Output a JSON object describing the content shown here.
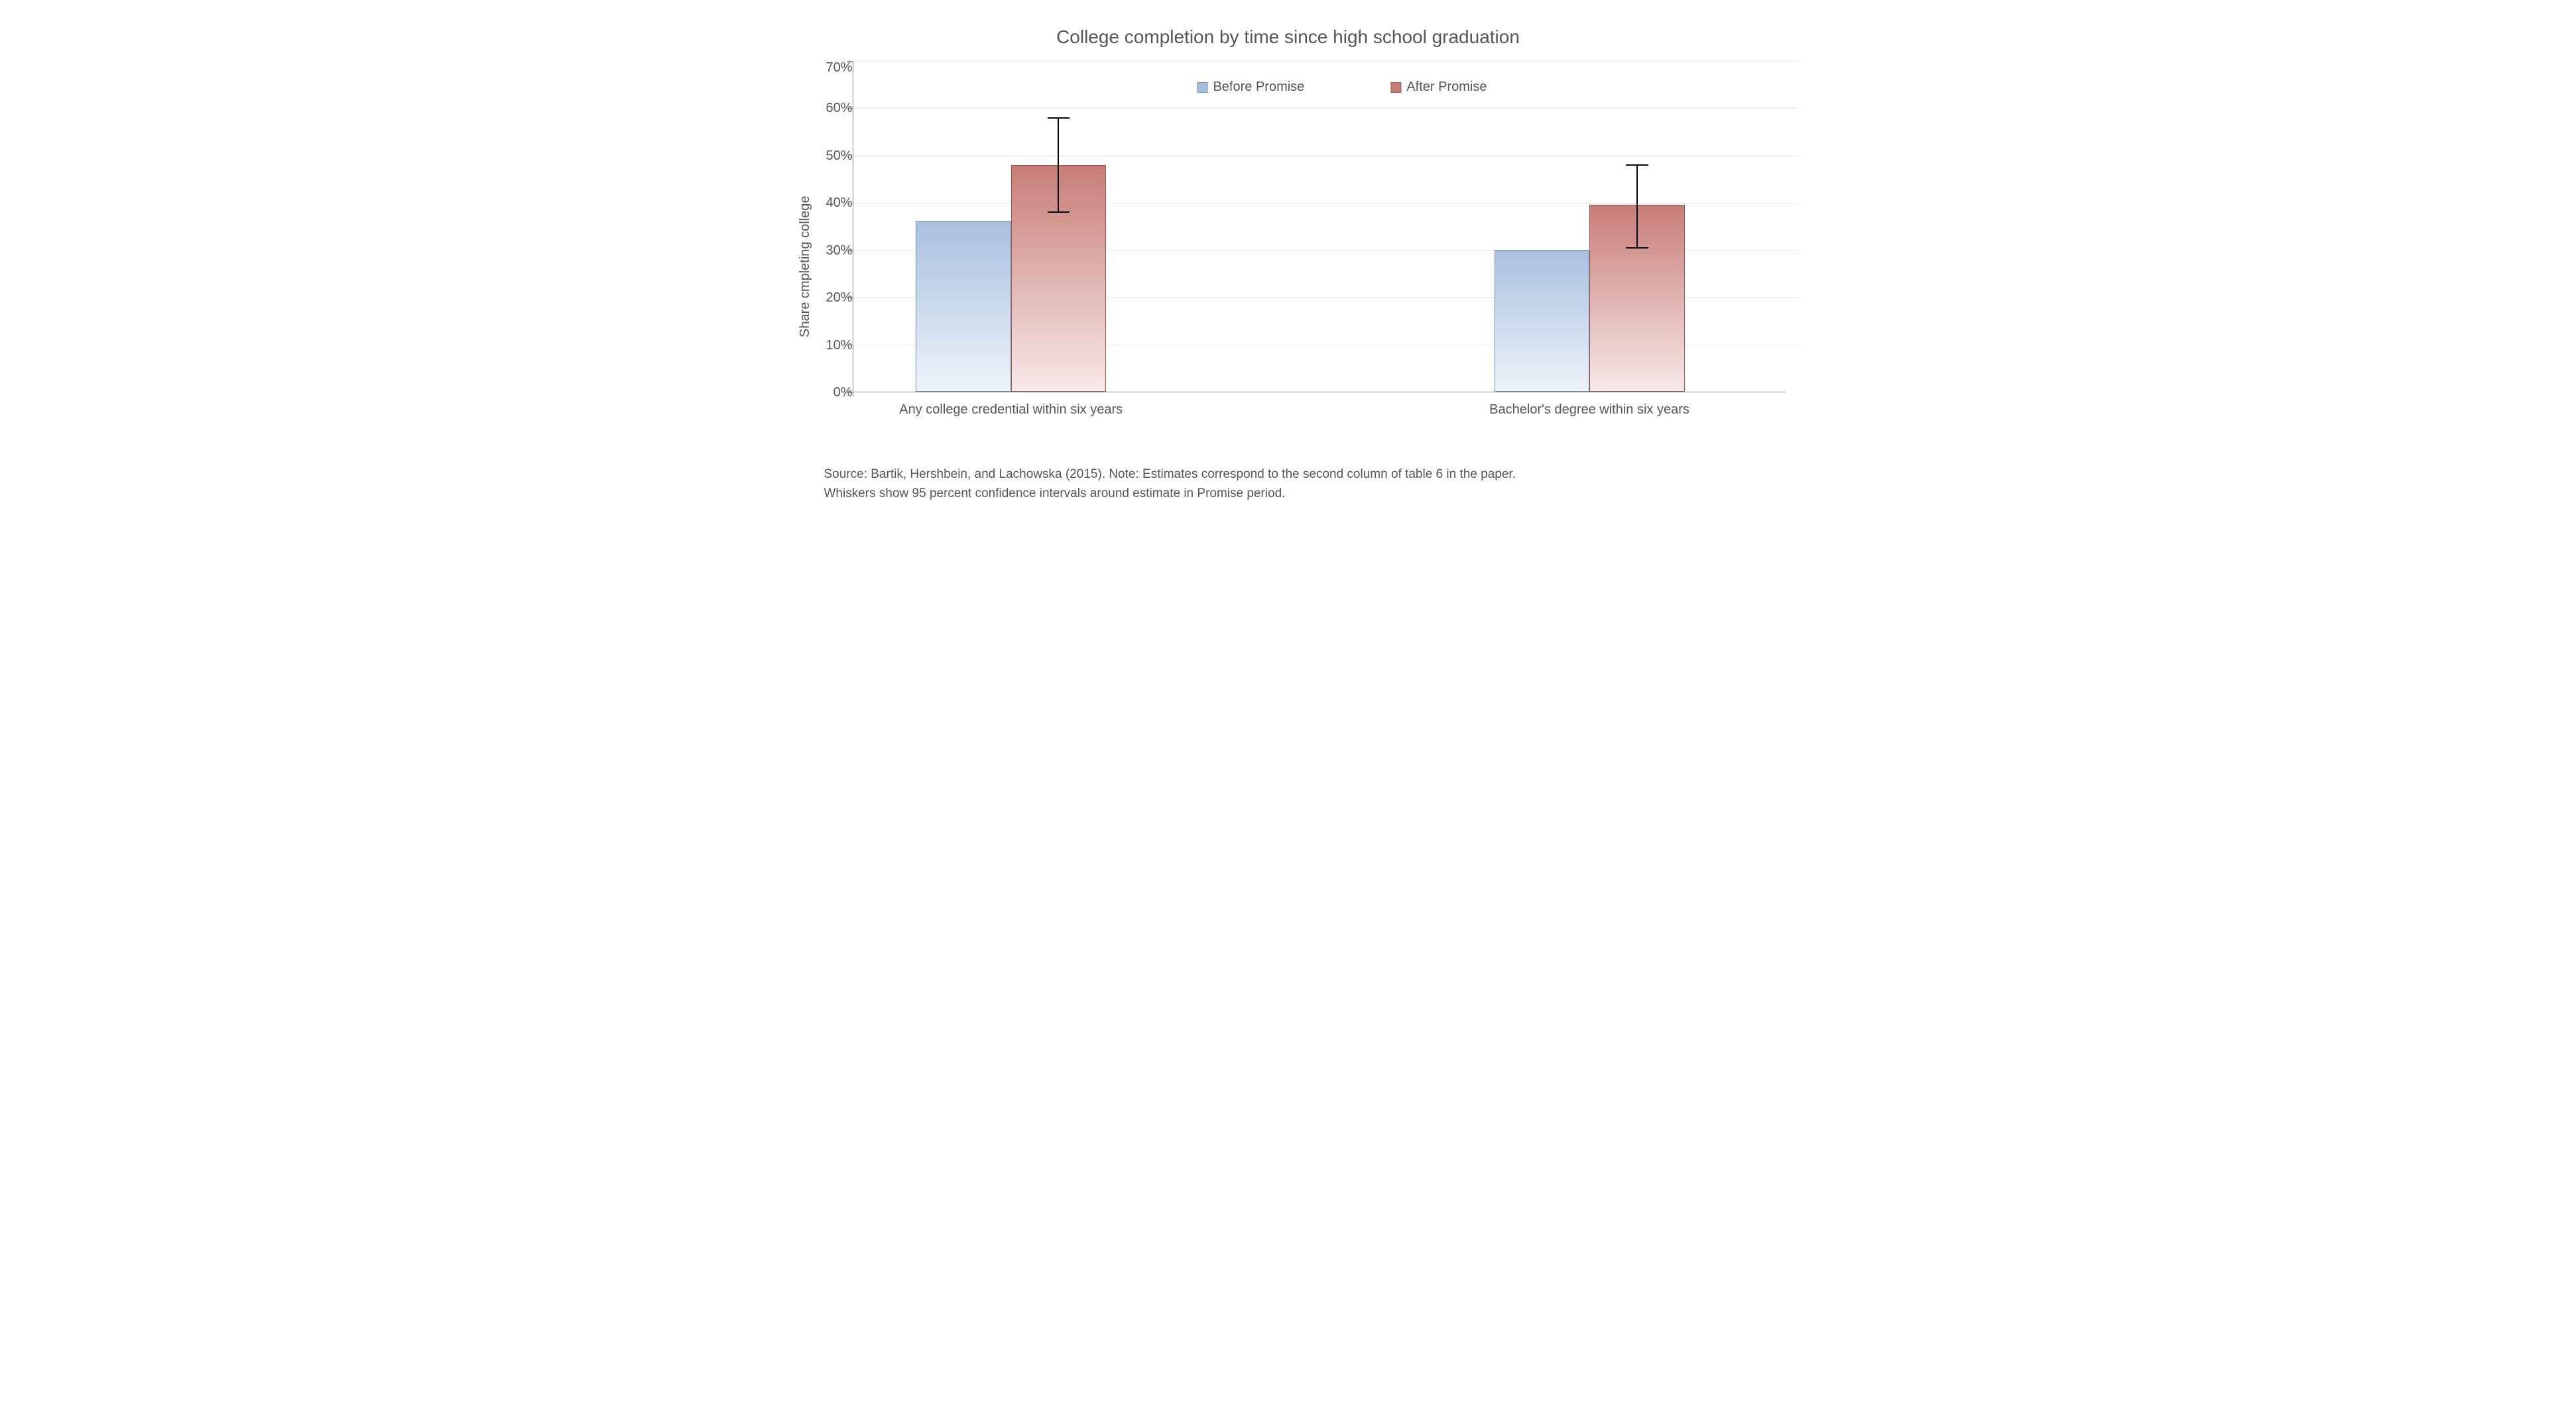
{
  "chart": {
    "type": "bar",
    "title": "College completion by time since high school graduation",
    "title_fontsize": 28,
    "ylabel": "Share cmpleting college",
    "label_fontsize": 20,
    "ylim": [
      0,
      70
    ],
    "ytick_step": 10,
    "yticks": [
      "70%",
      "60%",
      "50%",
      "40%",
      "30%",
      "20%",
      "10%",
      "0%"
    ],
    "ytick_values": [
      70,
      60,
      50,
      40,
      30,
      20,
      10,
      0
    ],
    "background_color": "#ffffff",
    "grid_color": "#e6e6e6",
    "axis_color": "#888888",
    "text_color": "#555555",
    "categories": [
      "Any college credential within six years",
      "Bachelor's degree within six years"
    ],
    "series": [
      {
        "name": "Before Promise",
        "color_fill_top": "#a8c0e0",
        "color_fill_bottom": "#eef3fa",
        "color_border": "#6f8db3",
        "values": [
          36,
          30
        ]
      },
      {
        "name": "After Promise",
        "color_fill_top": "#c87d77",
        "color_fill_bottom": "#f7e9e8",
        "color_border": "#9e5750",
        "values": [
          48,
          39.5
        ],
        "error_low": [
          38,
          30.5
        ],
        "error_high": [
          58,
          48
        ]
      }
    ],
    "bar_width_pct": 10.2,
    "group_positions_pct": [
      17,
      79
    ],
    "error_cap_width_pct": 2.4,
    "legend": {
      "items": [
        "Before Promise",
        "After Promise"
      ]
    }
  },
  "source": {
    "line1": "Source: Bartik, Hershbein, and Lachowska (2015). Note: Estimates  correspond to the second column of table 6 in the paper.",
    "line2": "Whiskers show 95 percent confidence intervals around estimate in Promise period."
  }
}
